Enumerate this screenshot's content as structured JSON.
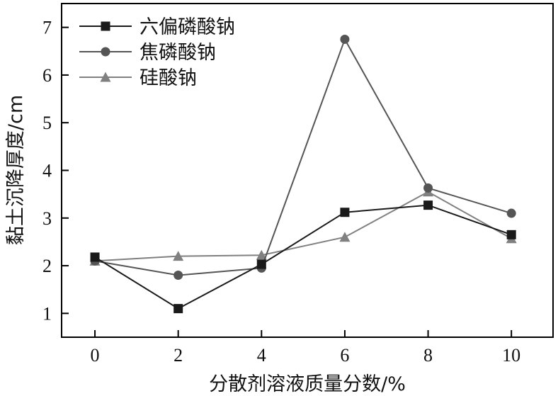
{
  "chart_data": {
    "type": "line",
    "title": "",
    "xlabel": "分散剂溶液质量分数/%",
    "ylabel": "黏土沉降厚度/cm",
    "x": [
      0,
      2,
      4,
      6,
      8,
      10
    ],
    "xticks": [
      "0",
      "2",
      "4",
      "6",
      "8",
      "10"
    ],
    "yticks": [
      "1",
      "2",
      "3",
      "4",
      "5",
      "6",
      "7"
    ],
    "xlim": [
      -0.8,
      11
    ],
    "ylim": [
      0.5,
      7.5
    ],
    "grid": false,
    "legend_position": "top-left",
    "series": [
      {
        "name": "六偏磷酸钠",
        "values": [
          2.18,
          1.1,
          2.03,
          3.12,
          3.27,
          2.65
        ],
        "color": "#1a1a1a",
        "marker": "square"
      },
      {
        "name": "焦磷酸钠",
        "values": [
          2.1,
          1.8,
          1.95,
          6.75,
          3.63,
          3.1
        ],
        "color": "#555555",
        "marker": "circle"
      },
      {
        "name": "硅酸钠",
        "values": [
          2.1,
          2.2,
          2.22,
          2.6,
          3.55,
          2.57
        ],
        "color": "#808080",
        "marker": "triangle"
      }
    ]
  }
}
